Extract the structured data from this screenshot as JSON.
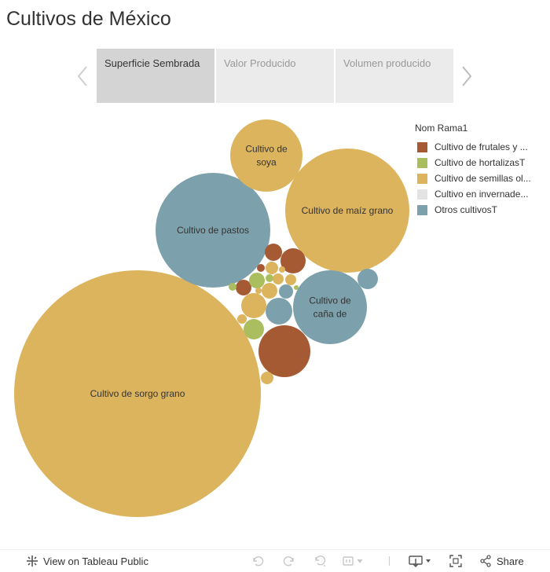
{
  "title": "Cultivos de México",
  "tabs": [
    {
      "label": "Superficie Sembrada",
      "active": true
    },
    {
      "label": "Valor Producido",
      "active": false
    },
    {
      "label": "Volumen producido",
      "active": false
    }
  ],
  "legend": {
    "title": "Nom Rama1",
    "items": [
      {
        "label": "Cultivo de frutales y ...",
        "color": "#a55a34"
      },
      {
        "label": "Cultivo de hortalizasT",
        "color": "#aabd5f"
      },
      {
        "label": "Cultivo de semillas ol...",
        "color": "#dcb45e"
      },
      {
        "label": "Cultivo en invernade...",
        "color": "#e3e3e3"
      },
      {
        "label": "Otros cultivosT",
        "color": "#7da1ac"
      }
    ]
  },
  "colors": {
    "frutales": "#a55a34",
    "hortalizas": "#aabd5f",
    "semillas": "#dcb45e",
    "invernadero": "#e3e3e3",
    "otros": "#7da1ac"
  },
  "chart_data": {
    "type": "bubble",
    "size_measure": "Superficie Sembrada",
    "labeled_bubbles": [
      {
        "label": [
          "Cultivo de sorgo grano"
        ],
        "category": "Cultivo de semillas oleaginosas",
        "relative_size": 1.0
      },
      {
        "label": [
          "Cultivo de maíz grano"
        ],
        "category": "Cultivo de semillas oleaginosas",
        "relative_size": 0.26
      },
      {
        "label": [
          "Cultivo de pastos"
        ],
        "category": "Otros cultivosT",
        "relative_size": 0.21
      },
      {
        "label": [
          "Cultivo de",
          "caña de"
        ],
        "category": "Otros cultivosT",
        "relative_size": 0.087
      },
      {
        "label": [
          "Cultivo de",
          "soya"
        ],
        "category": "Cultivo de semillas oleaginosas",
        "relative_size": 0.084
      }
    ]
  },
  "footer": {
    "view_link": "View on Tableau Public",
    "share": "Share"
  }
}
